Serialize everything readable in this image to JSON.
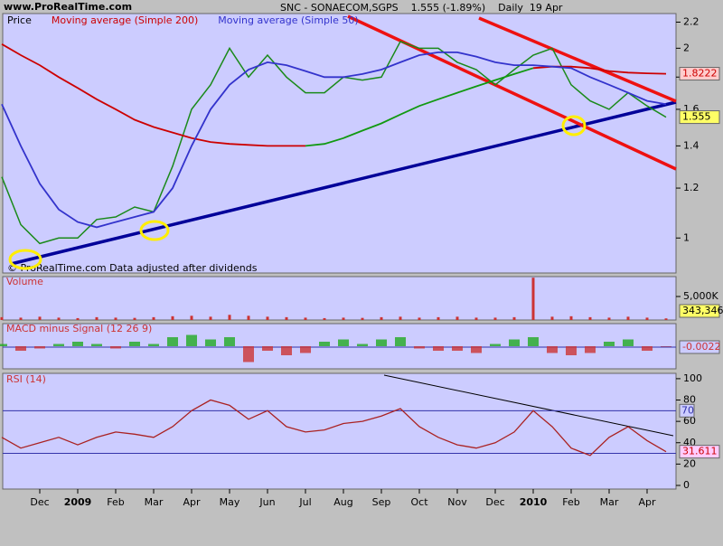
{
  "chart_data": [
    {
      "type": "line",
      "site": "www.ProRealTime.com",
      "title": "SNC - SONAECOM,SGPS    1.555 (-1.89%)    Daily  19 Apr",
      "note": "© ProRealTime.com Data adjusted after dividends",
      "categories": [
        null,
        null,
        "Dec",
        null,
        "2009",
        null,
        "Feb",
        null,
        "Mar",
        null,
        "Apr",
        null,
        "May",
        null,
        "Jun",
        null,
        "Jul",
        null,
        "Aug",
        null,
        "Sep",
        null,
        "Oct",
        null,
        "Nov",
        null,
        "Dec",
        null,
        "2010",
        null,
        "Feb",
        null,
        "Mar",
        null,
        "Apr",
        null
      ],
      "series": [
        {
          "name": "Price",
          "color": "#1a8a1a",
          "values": [
            1.25,
            1.05,
            0.98,
            1.0,
            1.0,
            1.07,
            1.08,
            1.12,
            1.1,
            1.3,
            1.6,
            1.75,
            2.0,
            1.8,
            1.95,
            1.8,
            1.7,
            1.7,
            1.8,
            1.78,
            1.8,
            2.05,
            2.0,
            2.0,
            1.9,
            1.85,
            1.75,
            1.85,
            1.95,
            2.0,
            1.75,
            1.65,
            1.6,
            1.7,
            1.62,
            1.555
          ]
        },
        {
          "name": "Moving average (Simple 200)",
          "color": "#cc0000",
          "values": [
            2.03,
            1.95,
            1.88,
            1.8,
            1.73,
            1.66,
            1.6,
            1.54,
            1.5,
            1.47,
            1.44,
            1.42,
            1.41,
            1.405,
            1.4,
            1.4,
            1.4,
            null,
            null,
            null,
            null,
            null,
            null,
            null,
            null,
            null,
            null,
            null,
            1.86,
            1.87,
            1.87,
            1.86,
            1.84,
            1.83,
            1.825,
            1.8222
          ]
        },
        {
          "name": "Moving average (Simple 50)",
          "color": "#3333cc",
          "values": [
            1.63,
            1.4,
            1.22,
            1.11,
            1.06,
            1.04,
            1.06,
            1.08,
            1.1,
            1.2,
            1.4,
            1.6,
            1.75,
            1.85,
            1.9,
            1.88,
            1.84,
            1.8,
            1.8,
            1.82,
            1.85,
            1.9,
            1.95,
            1.97,
            1.97,
            1.94,
            1.9,
            1.88,
            1.88,
            1.87,
            1.86,
            1.8,
            1.75,
            1.7,
            1.65,
            1.63
          ]
        },
        {
          "color": "#119911",
          "values": [
            null,
            null,
            null,
            null,
            null,
            null,
            null,
            null,
            null,
            null,
            null,
            null,
            null,
            null,
            null,
            null,
            1.4,
            1.41,
            1.44,
            1.48,
            1.52,
            1.57,
            1.62,
            1.66,
            1.7,
            1.74,
            1.78,
            1.82,
            1.86,
            null,
            null,
            null,
            null,
            null,
            null,
            null
          ]
        }
      ],
      "ylim": [
        0.88,
        2.27
      ],
      "log": true,
      "yticks": [
        1,
        1.2,
        1.4,
        1.6,
        1.8,
        2,
        2.2
      ]
    },
    {
      "type": "bar",
      "title": "Volume",
      "color": "#cc3333",
      "values": [
        600000,
        500000,
        700000,
        500000,
        400000,
        600000,
        500000,
        450000,
        600000,
        800000,
        900000,
        700000,
        1100000,
        900000,
        700000,
        600000,
        500000,
        400000,
        500000,
        450000,
        600000,
        700000,
        500000,
        600000,
        700000,
        500000,
        500000,
        600000,
        9000000,
        700000,
        800000,
        600000,
        500000,
        700000,
        500000,
        343346
      ],
      "value_labels": [
        null,
        null,
        null,
        null,
        null,
        null,
        null,
        null,
        null,
        null,
        null,
        null,
        null,
        null,
        null,
        null,
        null,
        null,
        null,
        null,
        null,
        null,
        null,
        null,
        null,
        null,
        null,
        null,
        null,
        null,
        null,
        null,
        null,
        null,
        null,
        "343,346"
      ],
      "ylim": [
        0,
        9230000
      ],
      "yticks": [
        {
          "value": 5000000,
          "label": "5,000K"
        }
      ]
    },
    {
      "type": "histogram-bar",
      "title": "MACD minus Signal (12 26 9)",
      "values": [
        0.01,
        -0.02,
        -0.01,
        0.01,
        0.02,
        0.01,
        -0.01,
        0.02,
        0.01,
        0.04,
        0.05,
        0.03,
        0.04,
        -0.07,
        -0.02,
        -0.04,
        -0.03,
        0.02,
        0.03,
        0.01,
        0.03,
        0.04,
        -0.01,
        -0.02,
        -0.02,
        -0.03,
        0.01,
        0.03,
        0.04,
        -0.03,
        -0.04,
        -0.03,
        0.02,
        0.03,
        -0.02,
        -0.0022
      ],
      "colors": [
        "#22aa22",
        "#cc3333"
      ],
      "ylim": [
        -0.1,
        0.1
      ]
    },
    {
      "type": "line",
      "title": "RSI (14)",
      "color": "#aa2222",
      "values": [
        45,
        35,
        40,
        45,
        38,
        45,
        50,
        48,
        45,
        55,
        70,
        80,
        75,
        62,
        70,
        55,
        50,
        52,
        58,
        60,
        65,
        72,
        55,
        45,
        38,
        35,
        40,
        50,
        70,
        55,
        35,
        28,
        45,
        55,
        42,
        31.611
      ],
      "levels": [
        70,
        30
      ],
      "ylim": [
        -3.4,
        105
      ],
      "yticks": [
        0,
        20,
        40,
        60,
        80,
        100
      ]
    }
  ]
}
